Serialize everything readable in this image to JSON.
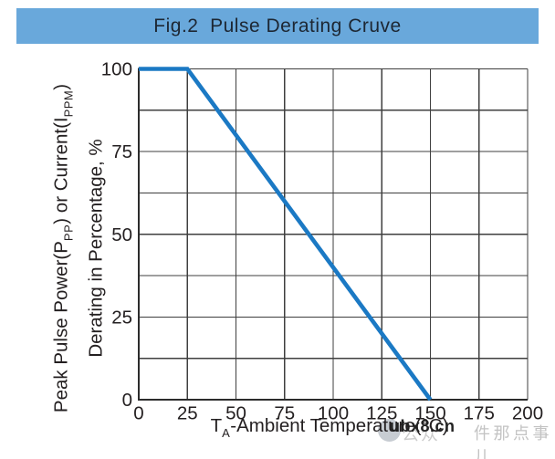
{
  "title": "Fig.2  Pulse Derating Cruve",
  "chart_data": {
    "type": "line",
    "title": "Fig.2  Pulse Derating Cruve",
    "x": {
      "label": "TA-Ambient Temperature(°C)",
      "label_segments": [
        {
          "t": "T"
        },
        {
          "s": "A"
        },
        {
          "t": "-Ambient Temperature(°C)"
        }
      ],
      "min": 0,
      "max": 200,
      "ticks": [
        0,
        25,
        50,
        75,
        100,
        125,
        150,
        175,
        200
      ],
      "grid_step": 25
    },
    "y": {
      "label": "Peak Pulse Power(PPP) or Current(IPPM) Derating in Percentage, %",
      "label_lines": [
        [
          {
            "t": "Peak Pulse Power(P"
          },
          {
            "s": "PP"
          },
          {
            "t": ") or Current(I"
          },
          {
            "s": "PPM"
          },
          {
            "t": ")"
          }
        ],
        [
          {
            "t": "Derating in Percentage, %"
          }
        ]
      ],
      "min": 0,
      "max": 100,
      "ticks": [
        100,
        75,
        50,
        25,
        0
      ],
      "grid_step": 12.5
    },
    "grid": true,
    "legend": false,
    "series": [
      {
        "name": "pulse-derating-curve",
        "color": "#1b79c4",
        "points": [
          [
            0,
            100
          ],
          [
            25,
            100
          ],
          [
            150,
            0
          ]
        ]
      }
    ]
  },
  "watermark": {
    "bold": "ubx8.cn",
    "faint_left": "公众",
    "faint_right": "件那点事儿"
  },
  "colors": {
    "header_bg": "#69a8db",
    "header_text": "#1d2733",
    "grid": "#3f3f3f",
    "axis": "#2c2c2c",
    "tick_text": "#231f20",
    "line": "#1b79c4",
    "watermark_gray": "#c5c5c5"
  }
}
